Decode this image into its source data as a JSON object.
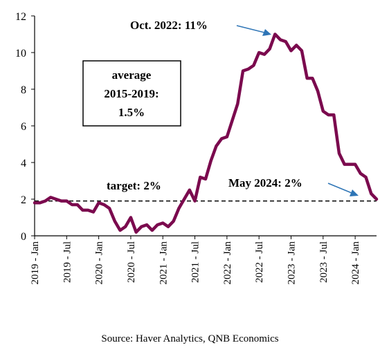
{
  "chart_data": {
    "type": "line",
    "title": "",
    "xlabel": "",
    "ylabel": "",
    "ylim": [
      0,
      12
    ],
    "yticks": [
      "0",
      "2",
      "4",
      "6",
      "8",
      "10",
      "12"
    ],
    "xticks": [
      "2019 - Jan",
      "2019 - Jul",
      "2020 - Jan",
      "2020 - Jul",
      "2021 - Jan",
      "2021 - Jul",
      "2022 - Jan",
      "2022 - Jul",
      "2023 - Jan",
      "2023 - Jul",
      "2024 - Jan"
    ],
    "grid": false,
    "legend": "none",
    "series": [
      {
        "color": "#7b0a4e",
        "values": [
          1.8,
          1.8,
          1.9,
          2.1,
          2.0,
          1.9,
          1.9,
          1.7,
          1.7,
          1.4,
          1.4,
          1.3,
          1.8,
          1.7,
          1.5,
          0.8,
          0.3,
          0.5,
          1.0,
          0.2,
          0.5,
          0.6,
          0.3,
          0.6,
          0.7,
          0.5,
          0.8,
          1.5,
          2.0,
          2.5,
          1.9,
          3.2,
          3.1,
          4.1,
          4.9,
          5.3,
          5.4,
          6.3,
          7.2,
          9.0,
          9.1,
          9.3,
          10.0,
          9.9,
          10.2,
          11.0,
          10.7,
          10.6,
          10.1,
          10.4,
          10.1,
          8.6,
          8.6,
          7.9,
          6.8,
          6.6,
          6.6,
          4.5,
          3.9,
          3.9,
          3.9,
          3.4,
          3.2,
          2.3,
          2.0
        ]
      }
    ],
    "reference_lines": [
      {
        "label": "target: 2%",
        "y": 1.9,
        "style": "dashed"
      }
    ],
    "annotations": {
      "box": [
        "average",
        "2015-2019:",
        "1.5%"
      ],
      "peak": "Oct. 2022: 11%",
      "latest": "May 2024: 2%"
    },
    "colors": {
      "line": "#7b0a4e",
      "arrow": "#2e75b6"
    }
  },
  "source": "Source: Haver Analytics, QNB Economics"
}
